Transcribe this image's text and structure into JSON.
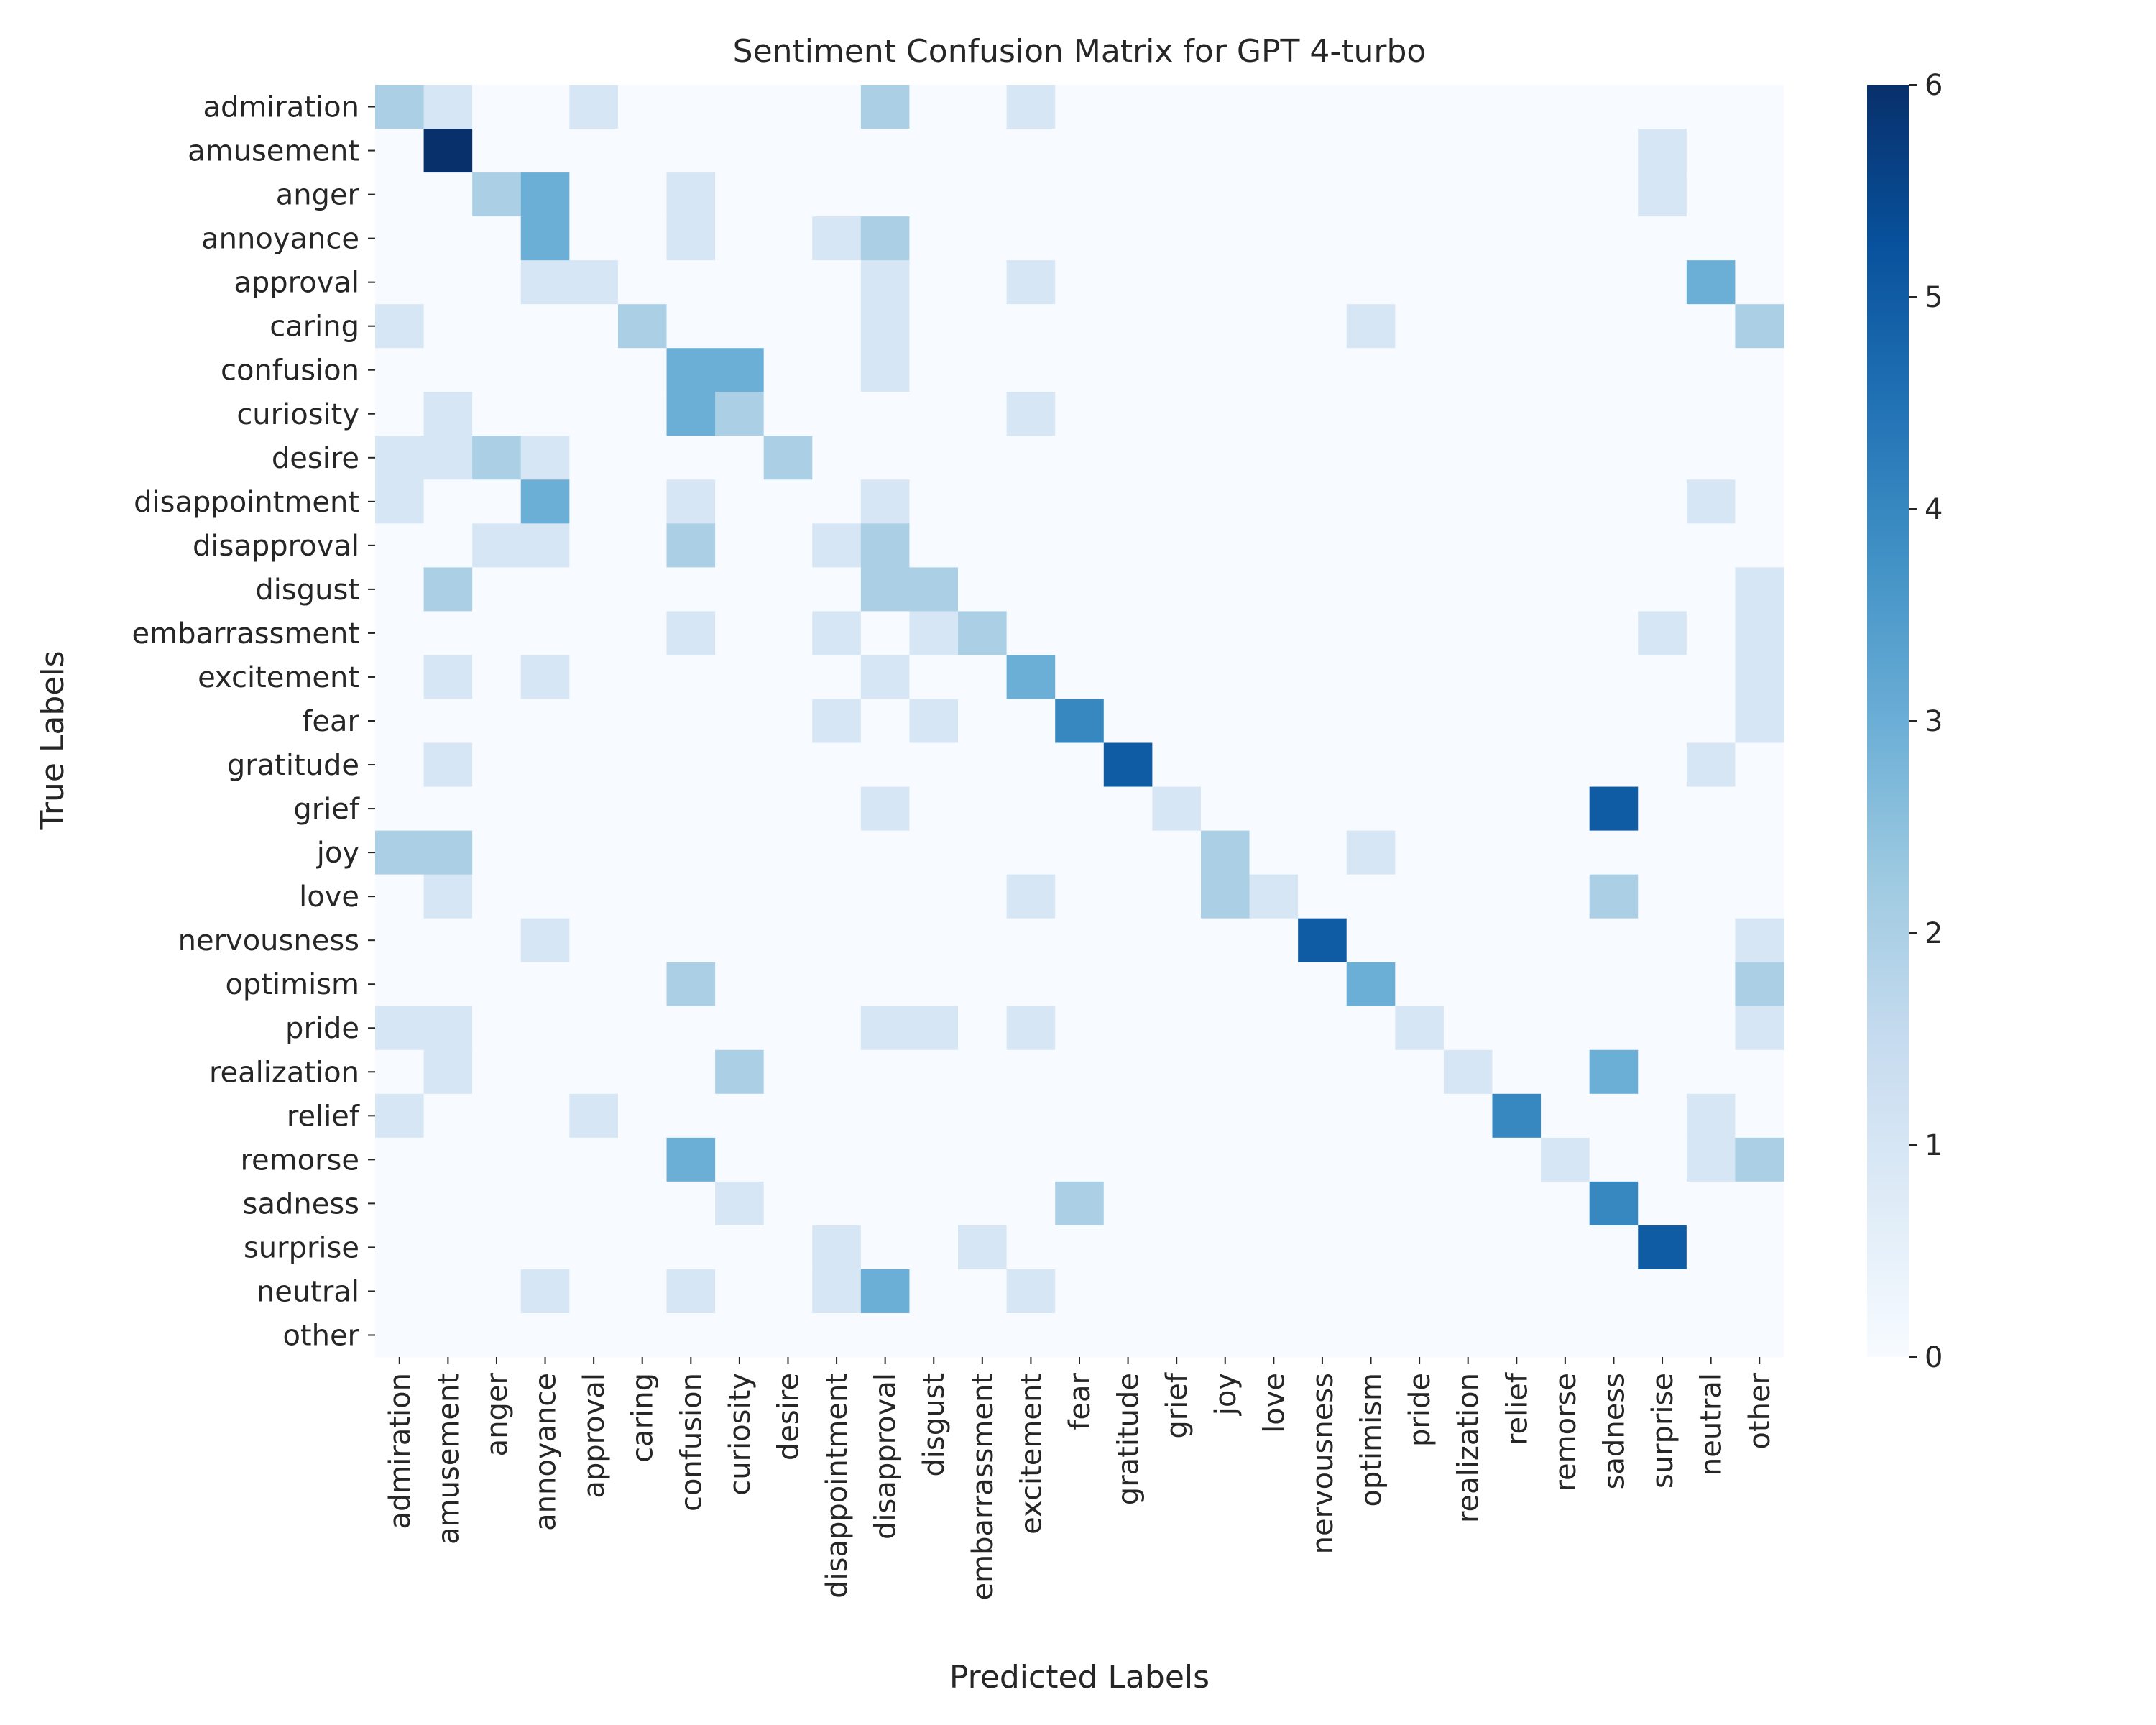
{
  "chart_data": {
    "type": "heatmap",
    "title": "Sentiment Confusion Matrix for GPT 4-turbo",
    "xlabel": "Predicted Labels",
    "ylabel": "True Labels",
    "colormap": "Blues",
    "value_range": [
      0,
      6
    ],
    "colorbar_ticks": [
      0,
      1,
      2,
      3,
      4,
      5,
      6
    ],
    "grid": false,
    "colorbar_position": "right",
    "labels": [
      "admiration",
      "amusement",
      "anger",
      "annoyance",
      "approval",
      "caring",
      "confusion",
      "curiosity",
      "desire",
      "disappointment",
      "disapproval",
      "disgust",
      "embarrassment",
      "excitement",
      "fear",
      "gratitude",
      "grief",
      "joy",
      "love",
      "nervousness",
      "optimism",
      "pride",
      "realization",
      "relief",
      "remorse",
      "sadness",
      "surprise",
      "neutral",
      "other"
    ],
    "matrix": [
      [
        2,
        1,
        0,
        0,
        1,
        0,
        0,
        0,
        0,
        0,
        2,
        0,
        0,
        1,
        0,
        0,
        0,
        0,
        0,
        0,
        0,
        0,
        0,
        0,
        0,
        0,
        0,
        0,
        0
      ],
      [
        0,
        6,
        0,
        0,
        0,
        0,
        0,
        0,
        0,
        0,
        0,
        0,
        0,
        0,
        0,
        0,
        0,
        0,
        0,
        0,
        0,
        0,
        0,
        0,
        0,
        0,
        1,
        0,
        0
      ],
      [
        0,
        0,
        2,
        3,
        0,
        0,
        1,
        0,
        0,
        0,
        0,
        0,
        0,
        0,
        0,
        0,
        0,
        0,
        0,
        0,
        0,
        0,
        0,
        0,
        0,
        0,
        1,
        0,
        0
      ],
      [
        0,
        0,
        0,
        3,
        0,
        0,
        1,
        0,
        0,
        1,
        2,
        0,
        0,
        0,
        0,
        0,
        0,
        0,
        0,
        0,
        0,
        0,
        0,
        0,
        0,
        0,
        0,
        0,
        0
      ],
      [
        0,
        0,
        0,
        1,
        1,
        0,
        0,
        0,
        0,
        0,
        1,
        0,
        0,
        1,
        0,
        0,
        0,
        0,
        0,
        0,
        0,
        0,
        0,
        0,
        0,
        0,
        0,
        3,
        0
      ],
      [
        1,
        0,
        0,
        0,
        0,
        2,
        0,
        0,
        0,
        0,
        1,
        0,
        0,
        0,
        0,
        0,
        0,
        0,
        0,
        0,
        1,
        0,
        0,
        0,
        0,
        0,
        0,
        0,
        2
      ],
      [
        0,
        0,
        0,
        0,
        0,
        0,
        3,
        3,
        0,
        0,
        1,
        0,
        0,
        0,
        0,
        0,
        0,
        0,
        0,
        0,
        0,
        0,
        0,
        0,
        0,
        0,
        0,
        0,
        0
      ],
      [
        0,
        1,
        0,
        0,
        0,
        0,
        3,
        2,
        0,
        0,
        0,
        0,
        0,
        1,
        0,
        0,
        0,
        0,
        0,
        0,
        0,
        0,
        0,
        0,
        0,
        0,
        0,
        0,
        0
      ],
      [
        1,
        1,
        2,
        1,
        0,
        0,
        0,
        0,
        2,
        0,
        0,
        0,
        0,
        0,
        0,
        0,
        0,
        0,
        0,
        0,
        0,
        0,
        0,
        0,
        0,
        0,
        0,
        0,
        0
      ],
      [
        1,
        0,
        0,
        3,
        0,
        0,
        1,
        0,
        0,
        0,
        1,
        0,
        0,
        0,
        0,
        0,
        0,
        0,
        0,
        0,
        0,
        0,
        0,
        0,
        0,
        0,
        0,
        1,
        0
      ],
      [
        0,
        0,
        1,
        1,
        0,
        0,
        2,
        0,
        0,
        1,
        2,
        0,
        0,
        0,
        0,
        0,
        0,
        0,
        0,
        0,
        0,
        0,
        0,
        0,
        0,
        0,
        0,
        0,
        0
      ],
      [
        0,
        2,
        0,
        0,
        0,
        0,
        0,
        0,
        0,
        0,
        2,
        2,
        0,
        0,
        0,
        0,
        0,
        0,
        0,
        0,
        0,
        0,
        0,
        0,
        0,
        0,
        0,
        0,
        1
      ],
      [
        0,
        0,
        0,
        0,
        0,
        0,
        1,
        0,
        0,
        1,
        0,
        1,
        2,
        0,
        0,
        0,
        0,
        0,
        0,
        0,
        0,
        0,
        0,
        0,
        0,
        0,
        1,
        0,
        1
      ],
      [
        0,
        1,
        0,
        1,
        0,
        0,
        0,
        0,
        0,
        0,
        1,
        0,
        0,
        3,
        0,
        0,
        0,
        0,
        0,
        0,
        0,
        0,
        0,
        0,
        0,
        0,
        0,
        0,
        1
      ],
      [
        0,
        0,
        0,
        0,
        0,
        0,
        0,
        0,
        0,
        1,
        0,
        1,
        0,
        0,
        4,
        0,
        0,
        0,
        0,
        0,
        0,
        0,
        0,
        0,
        0,
        0,
        0,
        0,
        1
      ],
      [
        0,
        1,
        0,
        0,
        0,
        0,
        0,
        0,
        0,
        0,
        0,
        0,
        0,
        0,
        0,
        5,
        0,
        0,
        0,
        0,
        0,
        0,
        0,
        0,
        0,
        0,
        0,
        1,
        0
      ],
      [
        0,
        0,
        0,
        0,
        0,
        0,
        0,
        0,
        0,
        0,
        1,
        0,
        0,
        0,
        0,
        0,
        1,
        0,
        0,
        0,
        0,
        0,
        0,
        0,
        0,
        5,
        0,
        0,
        0
      ],
      [
        2,
        2,
        0,
        0,
        0,
        0,
        0,
        0,
        0,
        0,
        0,
        0,
        0,
        0,
        0,
        0,
        0,
        2,
        0,
        0,
        1,
        0,
        0,
        0,
        0,
        0,
        0,
        0,
        0
      ],
      [
        0,
        1,
        0,
        0,
        0,
        0,
        0,
        0,
        0,
        0,
        0,
        0,
        0,
        1,
        0,
        0,
        0,
        2,
        1,
        0,
        0,
        0,
        0,
        0,
        0,
        2,
        0,
        0,
        0
      ],
      [
        0,
        0,
        0,
        1,
        0,
        0,
        0,
        0,
        0,
        0,
        0,
        0,
        0,
        0,
        0,
        0,
        0,
        0,
        0,
        5,
        0,
        0,
        0,
        0,
        0,
        0,
        0,
        0,
        1
      ],
      [
        0,
        0,
        0,
        0,
        0,
        0,
        2,
        0,
        0,
        0,
        0,
        0,
        0,
        0,
        0,
        0,
        0,
        0,
        0,
        0,
        3,
        0,
        0,
        0,
        0,
        0,
        0,
        0,
        2
      ],
      [
        1,
        1,
        0,
        0,
        0,
        0,
        0,
        0,
        0,
        0,
        1,
        1,
        0,
        1,
        0,
        0,
        0,
        0,
        0,
        0,
        0,
        1,
        0,
        0,
        0,
        0,
        0,
        0,
        1
      ],
      [
        0,
        1,
        0,
        0,
        0,
        0,
        0,
        2,
        0,
        0,
        0,
        0,
        0,
        0,
        0,
        0,
        0,
        0,
        0,
        0,
        0,
        0,
        1,
        0,
        0,
        3,
        0,
        0,
        0
      ],
      [
        1,
        0,
        0,
        0,
        1,
        0,
        0,
        0,
        0,
        0,
        0,
        0,
        0,
        0,
        0,
        0,
        0,
        0,
        0,
        0,
        0,
        0,
        0,
        4,
        0,
        0,
        0,
        1,
        0
      ],
      [
        0,
        0,
        0,
        0,
        0,
        0,
        3,
        0,
        0,
        0,
        0,
        0,
        0,
        0,
        0,
        0,
        0,
        0,
        0,
        0,
        0,
        0,
        0,
        0,
        1,
        0,
        0,
        1,
        2
      ],
      [
        0,
        0,
        0,
        0,
        0,
        0,
        0,
        1,
        0,
        0,
        0,
        0,
        0,
        0,
        2,
        0,
        0,
        0,
        0,
        0,
        0,
        0,
        0,
        0,
        0,
        4,
        0,
        0,
        0
      ],
      [
        0,
        0,
        0,
        0,
        0,
        0,
        0,
        0,
        0,
        1,
        0,
        0,
        1,
        0,
        0,
        0,
        0,
        0,
        0,
        0,
        0,
        0,
        0,
        0,
        0,
        0,
        5,
        0,
        0
      ],
      [
        0,
        0,
        0,
        1,
        0,
        0,
        1,
        0,
        0,
        1,
        3,
        0,
        0,
        1,
        0,
        0,
        0,
        0,
        0,
        0,
        0,
        0,
        0,
        0,
        0,
        0,
        0,
        0,
        0
      ],
      [
        0,
        0,
        0,
        0,
        0,
        0,
        0,
        0,
        0,
        0,
        0,
        0,
        0,
        0,
        0,
        0,
        0,
        0,
        0,
        0,
        0,
        0,
        0,
        0,
        0,
        0,
        0,
        0,
        0
      ]
    ]
  }
}
